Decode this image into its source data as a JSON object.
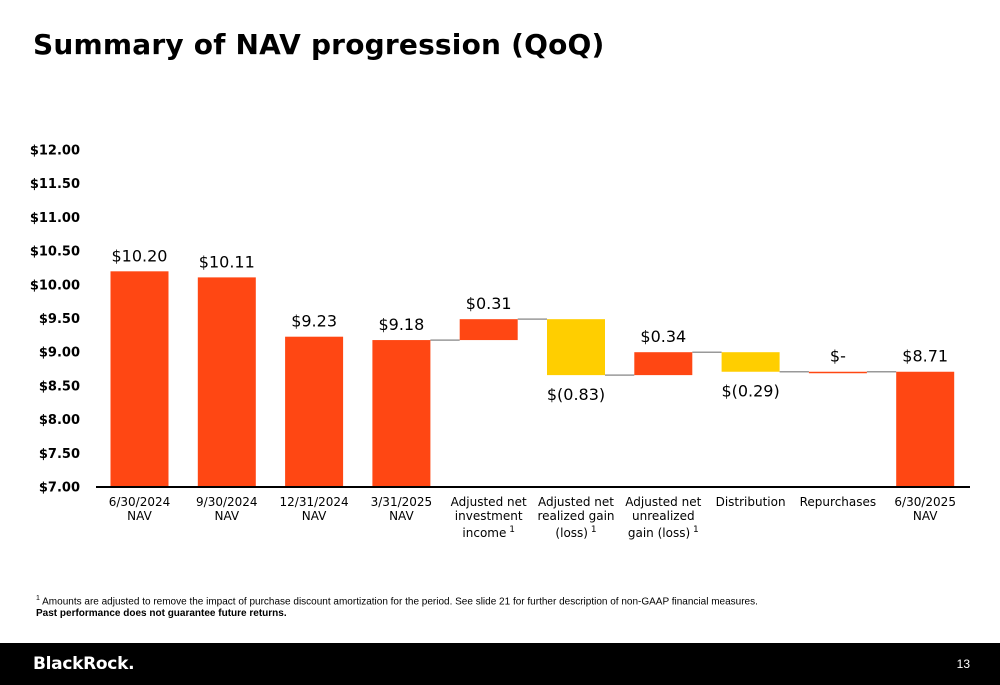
{
  "title": "Summary of NAV progression (QoQ)",
  "colors": {
    "increase": "#FF4713",
    "decrease": "#FFCE00",
    "connector": "#999999",
    "axis": "#000000"
  },
  "chart_data": {
    "type": "bar",
    "subtype": "waterfall",
    "ylim": [
      7.0,
      12.0
    ],
    "y_ticks": [
      "$7.00",
      "$7.50",
      "$8.00",
      "$8.50",
      "$9.00",
      "$9.50",
      "$10.00",
      "$10.50",
      "$11.00",
      "$11.50",
      "$12.00"
    ],
    "y_tick_values": [
      7.0,
      7.5,
      8.0,
      8.5,
      9.0,
      9.5,
      10.0,
      10.5,
      11.0,
      11.5,
      12.0
    ],
    "grid": false,
    "categories": [
      {
        "lines": [
          "6/30/2024",
          "NAV"
        ],
        "footnote": ""
      },
      {
        "lines": [
          "9/30/2024",
          "NAV"
        ],
        "footnote": ""
      },
      {
        "lines": [
          "12/31/2024",
          "NAV"
        ],
        "footnote": ""
      },
      {
        "lines": [
          "3/31/2025",
          "NAV"
        ],
        "footnote": ""
      },
      {
        "lines": [
          "Adjusted net",
          "investment",
          "income"
        ],
        "footnote": "1"
      },
      {
        "lines": [
          "Adjusted net",
          "realized gain",
          "(loss)"
        ],
        "footnote": "1"
      },
      {
        "lines": [
          "Adjusted net",
          "unrealized",
          "gain (loss)"
        ],
        "footnote": "1"
      },
      {
        "lines": [
          "Distribution"
        ],
        "footnote": ""
      },
      {
        "lines": [
          "Repurchases"
        ],
        "footnote": ""
      },
      {
        "lines": [
          "6/30/2025",
          "NAV"
        ],
        "footnote": ""
      }
    ],
    "bars": [
      {
        "kind": "total",
        "start": 7.0,
        "end": 10.2,
        "label": "$10.20",
        "color": "increase"
      },
      {
        "kind": "total",
        "start": 7.0,
        "end": 10.11,
        "label": "$10.11",
        "color": "increase"
      },
      {
        "kind": "total",
        "start": 7.0,
        "end": 9.23,
        "label": "$9.23",
        "color": "increase"
      },
      {
        "kind": "total",
        "start": 7.0,
        "end": 9.18,
        "label": "$9.18",
        "color": "increase"
      },
      {
        "kind": "delta",
        "start": 9.18,
        "end": 9.49,
        "value": 0.31,
        "label": "$0.31",
        "color": "increase"
      },
      {
        "kind": "delta",
        "start": 9.49,
        "end": 8.66,
        "value": -0.83,
        "label": "$(0.83)",
        "color": "decrease"
      },
      {
        "kind": "delta",
        "start": 8.66,
        "end": 9.0,
        "value": 0.34,
        "label": "$0.34",
        "color": "increase"
      },
      {
        "kind": "delta",
        "start": 9.0,
        "end": 8.71,
        "value": -0.29,
        "label": "$(0.29)",
        "color": "decrease"
      },
      {
        "kind": "delta",
        "start": 8.71,
        "end": 8.71,
        "value": 0.0,
        "label": "$-",
        "color": "increase"
      },
      {
        "kind": "total",
        "start": 7.0,
        "end": 8.71,
        "label": "$8.71",
        "color": "increase"
      }
    ]
  },
  "footnote": {
    "marker": "1",
    "text": "Amounts are adjusted to remove the impact of purchase discount amortization for the period. See slide 21 for further description of non-GAAP financial measures."
  },
  "disclaimer": "Past performance does not guarantee future returns.",
  "footer": {
    "logo": "BlackRock.",
    "page_number": "13"
  }
}
